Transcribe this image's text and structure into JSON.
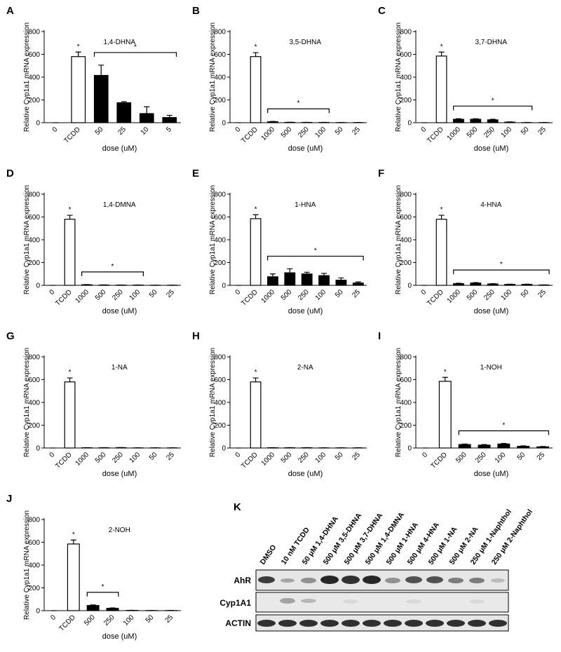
{
  "chart_data": [
    {
      "type": "bar",
      "panel": "A",
      "title": "1,4-DHNA",
      "ylabel": "Relative Cyp1a1 mRNA expression",
      "xlabel": "dose (uM)",
      "categories": [
        "0",
        "TCDD",
        "50",
        "25",
        "10",
        "5"
      ],
      "values": [
        0,
        580,
        415,
        175,
        80,
        45
      ],
      "errors": [
        0,
        40,
        90,
        10,
        60,
        20
      ],
      "colors": [
        "#ffffff",
        "#ffffff",
        "#000000",
        "#000000",
        "#000000",
        "#000000"
      ],
      "ylim": [
        0,
        800
      ],
      "yticks": [
        0,
        200,
        400,
        600,
        800
      ],
      "annotations": [
        {
          "text": "*",
          "over": "TCDD"
        },
        {
          "text": "*",
          "bracket": [
            "50",
            "5"
          ]
        }
      ]
    },
    {
      "type": "bar",
      "panel": "B",
      "title": "3,5-DHNA",
      "ylabel": "Relative Cyp1a1 mRNA expression",
      "xlabel": "dose (uM)",
      "categories": [
        "0",
        "TCDD",
        "1000",
        "500",
        "250",
        "100",
        "50",
        "25"
      ],
      "values": [
        0,
        580,
        8,
        3,
        2,
        2,
        1,
        1
      ],
      "errors": [
        0,
        35,
        3,
        1,
        1,
        1,
        1,
        1
      ],
      "colors": [
        "#ffffff",
        "#ffffff",
        "#000000",
        "#000000",
        "#000000",
        "#000000",
        "#000000",
        "#000000"
      ],
      "ylim": [
        0,
        800
      ],
      "yticks": [
        0,
        200,
        400,
        600,
        800
      ],
      "annotations": [
        {
          "text": "*",
          "over": "TCDD"
        },
        {
          "text": "*",
          "bracket": [
            "1000",
            "100"
          ]
        }
      ]
    },
    {
      "type": "bar",
      "panel": "C",
      "title": "3,7-DHNA",
      "ylabel": "Relative Cyp1a1 mRNA expression",
      "xlabel": "dose (uM)",
      "categories": [
        "0",
        "TCDD",
        "1000",
        "500",
        "250",
        "100",
        "50",
        "25"
      ],
      "values": [
        0,
        585,
        30,
        30,
        25,
        5,
        1,
        1
      ],
      "errors": [
        0,
        35,
        5,
        5,
        5,
        2,
        1,
        1
      ],
      "colors": [
        "#ffffff",
        "#ffffff",
        "#000000",
        "#000000",
        "#000000",
        "#000000",
        "#000000",
        "#000000"
      ],
      "ylim": [
        0,
        800
      ],
      "yticks": [
        0,
        200,
        400,
        600,
        800
      ],
      "annotations": [
        {
          "text": "*",
          "over": "TCDD"
        },
        {
          "text": "*",
          "bracket": [
            "1000",
            "50"
          ]
        }
      ]
    },
    {
      "type": "bar",
      "panel": "D",
      "title": "1,4-DMNA",
      "ylabel": "Relative Cyp1a1 mRNA expression",
      "xlabel": "dose (uM)",
      "categories": [
        "0",
        "TCDD",
        "1000",
        "500",
        "250",
        "100",
        "50",
        "25"
      ],
      "values": [
        0,
        580,
        5,
        3,
        2,
        2,
        1,
        1
      ],
      "errors": [
        0,
        35,
        2,
        1,
        1,
        1,
        1,
        1
      ],
      "colors": [
        "#ffffff",
        "#ffffff",
        "#000000",
        "#000000",
        "#000000",
        "#000000",
        "#000000",
        "#000000"
      ],
      "ylim": [
        0,
        800
      ],
      "yticks": [
        0,
        200,
        400,
        600,
        800
      ],
      "annotations": [
        {
          "text": "*",
          "over": "TCDD"
        },
        {
          "text": "*",
          "bracket": [
            "1000",
            "100"
          ]
        }
      ]
    },
    {
      "type": "bar",
      "panel": "E",
      "title": "1-HNA",
      "ylabel": "Relative Cyp1a1 mRNA expression",
      "xlabel": "dose (uM)",
      "categories": [
        "0",
        "TCDD",
        "1000",
        "500",
        "250",
        "100",
        "50",
        "25"
      ],
      "values": [
        0,
        585,
        75,
        110,
        100,
        85,
        45,
        20
      ],
      "errors": [
        0,
        35,
        25,
        35,
        15,
        20,
        20,
        10
      ],
      "colors": [
        "#ffffff",
        "#ffffff",
        "#000000",
        "#000000",
        "#000000",
        "#000000",
        "#000000",
        "#000000"
      ],
      "ylim": [
        0,
        800
      ],
      "yticks": [
        0,
        200,
        400,
        600,
        800
      ],
      "annotations": [
        {
          "text": "*",
          "over": "TCDD"
        },
        {
          "text": "*",
          "bracket": [
            "1000",
            "25"
          ]
        }
      ]
    },
    {
      "type": "bar",
      "panel": "F",
      "title": "4-HNA",
      "ylabel": "Relative Cyp1a1 mRNA expression",
      "xlabel": "dose (uM)",
      "categories": [
        "0",
        "TCDD",
        "1000",
        "500",
        "250",
        "100",
        "50",
        "25"
      ],
      "values": [
        0,
        580,
        15,
        20,
        12,
        8,
        8,
        3
      ],
      "errors": [
        0,
        35,
        4,
        4,
        3,
        2,
        2,
        1
      ],
      "colors": [
        "#ffffff",
        "#ffffff",
        "#000000",
        "#000000",
        "#000000",
        "#000000",
        "#000000",
        "#000000"
      ],
      "ylim": [
        0,
        800
      ],
      "yticks": [
        0,
        200,
        400,
        600,
        800
      ],
      "annotations": [
        {
          "text": "*",
          "over": "TCDD"
        },
        {
          "text": "*",
          "bracket": [
            "1000",
            "25"
          ]
        }
      ]
    },
    {
      "type": "bar",
      "panel": "G",
      "title": "1-NA",
      "ylabel": "Relative Cyp1a1 mRNA expression",
      "xlabel": "dose (uM)",
      "categories": [
        "0",
        "TCDD",
        "1000",
        "500",
        "250",
        "100",
        "50",
        "25"
      ],
      "values": [
        0,
        580,
        2,
        2,
        3,
        1,
        1,
        1
      ],
      "errors": [
        0,
        35,
        1,
        1,
        1,
        1,
        1,
        1
      ],
      "colors": [
        "#ffffff",
        "#ffffff",
        "#000000",
        "#000000",
        "#000000",
        "#000000",
        "#000000",
        "#000000"
      ],
      "ylim": [
        0,
        800
      ],
      "yticks": [
        0,
        200,
        400,
        600,
        800
      ],
      "annotations": [
        {
          "text": "*",
          "over": "TCDD"
        }
      ]
    },
    {
      "type": "bar",
      "panel": "H",
      "title": "2-NA",
      "ylabel": "Relative Cyp1a1 mRNA expression",
      "xlabel": "dose (uM)",
      "categories": [
        "0",
        "TCDD",
        "1000",
        "500",
        "250",
        "100",
        "50",
        "25"
      ],
      "values": [
        0,
        580,
        2,
        2,
        2,
        1,
        1,
        1
      ],
      "errors": [
        0,
        35,
        1,
        1,
        1,
        1,
        1,
        1
      ],
      "colors": [
        "#ffffff",
        "#ffffff",
        "#000000",
        "#000000",
        "#000000",
        "#000000",
        "#000000",
        "#000000"
      ],
      "ylim": [
        0,
        800
      ],
      "yticks": [
        0,
        200,
        400,
        600,
        800
      ],
      "annotations": [
        {
          "text": "*",
          "over": "TCDD"
        }
      ]
    },
    {
      "type": "bar",
      "panel": "I",
      "title": "1-NOH",
      "ylabel": "Relative Cyp1a1 mRNA expression",
      "xlabel": "dose (uM)",
      "categories": [
        "0",
        "TCDD",
        "500",
        "250",
        "100",
        "50",
        "25"
      ],
      "values": [
        0,
        585,
        30,
        25,
        35,
        15,
        10
      ],
      "errors": [
        0,
        35,
        5,
        5,
        5,
        4,
        3
      ],
      "colors": [
        "#ffffff",
        "#ffffff",
        "#000000",
        "#000000",
        "#000000",
        "#000000",
        "#000000"
      ],
      "ylim": [
        0,
        800
      ],
      "yticks": [
        0,
        200,
        400,
        600,
        800
      ],
      "annotations": [
        {
          "text": "*",
          "over": "TCDD"
        },
        {
          "text": "*",
          "bracket": [
            "500",
            "25"
          ]
        }
      ]
    },
    {
      "type": "bar",
      "panel": "J",
      "title": "2-NOH",
      "ylabel": "Relative Cyp1a1 mRNA expression",
      "xlabel": "dose (uM)",
      "categories": [
        "0",
        "TCDD",
        "500",
        "250",
        "100",
        "50",
        "25"
      ],
      "values": [
        0,
        585,
        45,
        20,
        2,
        1,
        1
      ],
      "errors": [
        0,
        35,
        5,
        4,
        1,
        1,
        1
      ],
      "colors": [
        "#ffffff",
        "#ffffff",
        "#000000",
        "#000000",
        "#000000",
        "#000000",
        "#000000"
      ],
      "ylim": [
        0,
        800
      ],
      "yticks": [
        0,
        200,
        400,
        600,
        800
      ],
      "annotations": [
        {
          "text": "*",
          "over": "TCDD"
        },
        {
          "text": "*",
          "bracket": [
            "500",
            "250"
          ]
        }
      ]
    }
  ],
  "blot": {
    "panel": "K",
    "lanes": [
      "DMSO",
      "10 nM TCDD",
      "50 μM 1,4-DHNA",
      "500 μM 3,5-DHNA",
      "500 μM 3,7-DHNA",
      "500 μM 1,4-DMNA",
      "500 μM 1-HNA",
      "500 μM 4-HNA",
      "500 μM 1-NA",
      "500 μM 2-NA",
      "250 μM 1-Naphthol",
      "250 μM 2-Naphthol"
    ],
    "rows": [
      "AhR",
      "Cyp1A1",
      "ACTIN"
    ]
  }
}
